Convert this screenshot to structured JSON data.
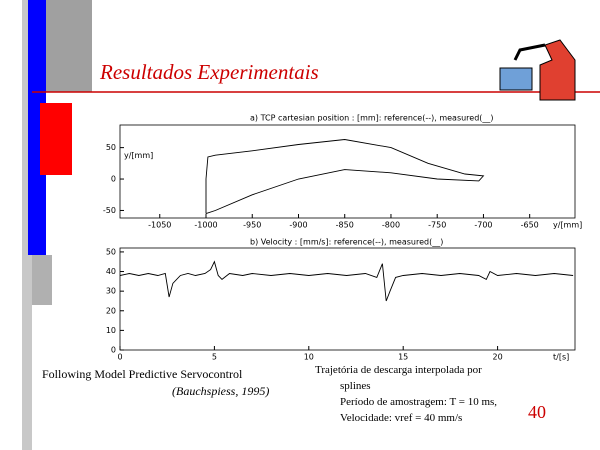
{
  "slide": {
    "title": "Resultados Experimentais",
    "page_number": "40",
    "caption_left": [
      "Following Model Predictive Servocontrol",
      "(Bauchspiess, 1995)"
    ],
    "caption_right": [
      "Trajetória de descarga interpolada por",
      "splines",
      "Período de amostragem: T = 10 ms,",
      "Velocidade: vref = 40 mm/s"
    ]
  },
  "chart_data": [
    {
      "type": "line",
      "title": "a) TCP cartesian position : [mm]: reference(--), measured(__)",
      "y_label": "y/[mm]",
      "x_label": "y/[mm]",
      "x": [
        -1000,
        -1000,
        -998,
        -990,
        -950,
        -900,
        -850,
        -800,
        -760,
        -720,
        -700,
        -705,
        -750,
        -800,
        -850,
        -900,
        -950,
        -990,
        -1000
      ],
      "series": [
        {
          "color": "#000000",
          "values": [
            -55,
            0,
            35,
            38,
            45,
            55,
            63,
            50,
            25,
            8,
            5,
            -3,
            0,
            10,
            15,
            0,
            -25,
            -50,
            -55
          ]
        }
      ],
      "xlim": [
        -1093,
        -601
      ],
      "ylim": [
        -62,
        86
      ],
      "xticks": [
        -1050,
        -1000,
        -950,
        -900,
        -850,
        -800,
        -750,
        -700,
        -650
      ],
      "yticks": [
        -50,
        0,
        50
      ]
    },
    {
      "type": "line",
      "title": "b) Velocity : [mm/s]: reference(--), measured(__)",
      "x_label": "t/[s]",
      "x": [
        0,
        0.5,
        1,
        1.5,
        2,
        2.4,
        2.6,
        2.8,
        3.2,
        3.6,
        4,
        4.5,
        4.8,
        5,
        5.2,
        5.4,
        5.8,
        6.5,
        7,
        8,
        9,
        10,
        11,
        12,
        13,
        13.6,
        13.9,
        14.1,
        14.3,
        14.6,
        15,
        16,
        17,
        18,
        19,
        19.4,
        19.6,
        20,
        21,
        22,
        23,
        24
      ],
      "series": [
        {
          "color": "#000000",
          "values": [
            38,
            39,
            38,
            39,
            38,
            39,
            27,
            34,
            38,
            39,
            38,
            39,
            41,
            45,
            38,
            36,
            39,
            38,
            39,
            38,
            39,
            38,
            39,
            38,
            39,
            37,
            44,
            25,
            30,
            37,
            38,
            39,
            38,
            39,
            38,
            36,
            40,
            38,
            39,
            38,
            39,
            38
          ]
        }
      ],
      "xlim": [
        0,
        24.1
      ],
      "ylim": [
        0,
        52
      ],
      "xticks": [
        0,
        5,
        10,
        15,
        20
      ],
      "yticks": [
        0,
        10,
        20,
        30,
        40,
        50
      ]
    }
  ]
}
